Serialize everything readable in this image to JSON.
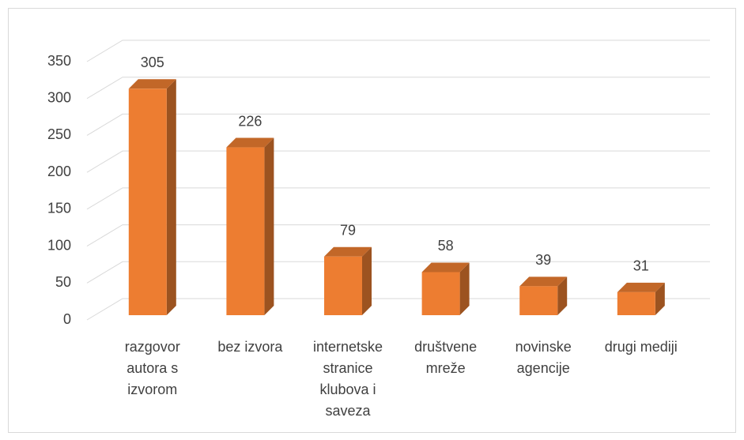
{
  "chart_data": {
    "type": "bar3d",
    "categories": [
      "razgovor autora s izvorom",
      "bez izvora",
      "internetske stranice klubova i saveza",
      "društvene mreže",
      "novinske agencije",
      "drugi mediji"
    ],
    "values": [
      305,
      226,
      79,
      58,
      39,
      31
    ],
    "color": "#ed7d31",
    "ylim": [
      0,
      350
    ],
    "yticks": [
      0,
      50,
      100,
      150,
      200,
      250,
      300,
      350
    ],
    "grid": true
  }
}
